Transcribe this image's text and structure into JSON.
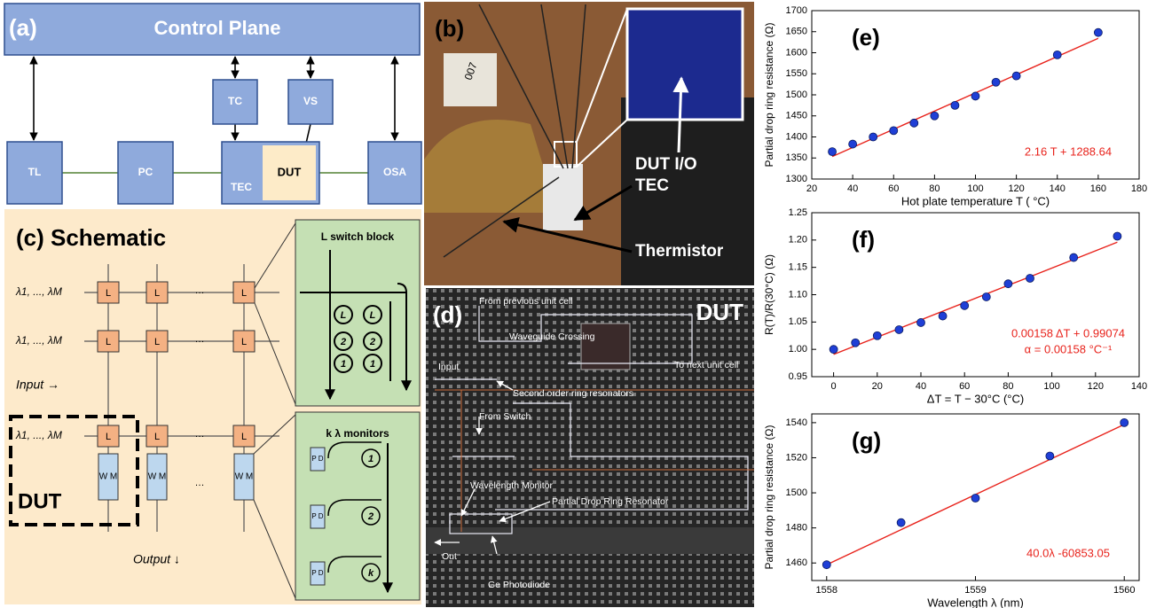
{
  "panels": {
    "a": {
      "label": "(a)",
      "control": "Control Plane",
      "tc": "TC",
      "vs": "VS",
      "tl": "TL",
      "pc": "PC",
      "tec": "TEC",
      "dut": "DUT",
      "osa": "OSA"
    },
    "b": {
      "label": "(b)",
      "chip": "007",
      "dut_io": "DUT I/O",
      "tec": "TEC",
      "thermistor": "Thermistor"
    },
    "c": {
      "label": "(c) Schematic",
      "switch_block": "L  switch block",
      "wavelengths": "λ1, ..., λM",
      "input": "Input →",
      "output": "Output ↓",
      "dut": "DUT",
      "switch": "L",
      "monitor": "W M",
      "dots": "…",
      "monitors_title": "k λ monitors",
      "pd": "P D",
      "rings": [
        "1",
        "2",
        "k"
      ],
      "ring_pairs": [
        "L",
        "2",
        "1"
      ]
    },
    "d": {
      "label": "(d)",
      "dut": "DUT",
      "from_prev": "From previous unit cell",
      "crossing": "Waveguide Crossing",
      "input": "Input",
      "to_next": "To next unit cell",
      "second_order": "Second order ring resonators",
      "from_switch": "From Switch",
      "wavelength_monitor": "Wavelength Monitor",
      "partial_drop": "Partial Drop Ring Resonator",
      "out": "Out",
      "photodiode": "Ge Photodiode"
    }
  },
  "chart_data": [
    {
      "type": "scatter",
      "panel_label": "(e)",
      "xlabel": "Hot plate temperature T ( °C)",
      "ylabel": "Partial drop ring resistance (Ω)",
      "x": [
        30,
        40,
        50,
        60,
        70,
        80,
        90,
        100,
        110,
        120,
        140,
        160
      ],
      "values": [
        1365,
        1383,
        1400,
        1415,
        1433,
        1450,
        1475,
        1497,
        1530,
        1545,
        1595,
        1648
      ],
      "color": "#1f3fd6",
      "fit": {
        "x": [
          30,
          160
        ],
        "values": [
          1353.44,
          1634.24
        ],
        "color": "#e8231c"
      },
      "annotations": [
        "2.16 T + 1288.64"
      ],
      "xlim": [
        20,
        180
      ],
      "xticks": [
        20,
        40,
        60,
        80,
        100,
        120,
        140,
        160,
        180
      ],
      "ylim": [
        1300,
        1700
      ],
      "yticks": [
        1300,
        1350,
        1400,
        1450,
        1500,
        1550,
        1600,
        1650,
        1700
      ]
    },
    {
      "type": "scatter",
      "panel_label": "(f)",
      "xlabel": "ΔT = T − 30°C (°C)",
      "ylabel": "R(T)/R(30°C) (Ω)",
      "x": [
        0,
        10,
        20,
        30,
        40,
        50,
        60,
        70,
        80,
        90,
        110,
        130
      ],
      "values": [
        1.0,
        1.012,
        1.025,
        1.036,
        1.049,
        1.061,
        1.08,
        1.096,
        1.12,
        1.13,
        1.168,
        1.207
      ],
      "color": "#1f3fd6",
      "fit": {
        "x": [
          0,
          130
        ],
        "values": [
          0.99074,
          1.19614
        ],
        "color": "#e8231c"
      },
      "annotations": [
        "0.00158 ΔT + 0.99074",
        "α = 0.00158 °C⁻¹"
      ],
      "xlim": [
        -10,
        140
      ],
      "xticks": [
        0,
        20,
        40,
        60,
        80,
        100,
        120,
        140
      ],
      "ylim": [
        0.95,
        1.25
      ],
      "yticks": [
        0.95,
        {
          "value": 1.0,
          "label": "1.00"
        },
        1.05,
        {
          "value": 1.1,
          "label": "1.10"
        },
        1.15,
        {
          "value": 1.2,
          "label": "1.20"
        },
        1.25
      ]
    },
    {
      "type": "scatter",
      "panel_label": "(g)",
      "xlabel": "Wavelength λ (nm)",
      "ylabel": "Partial drop ring resistance (Ω)",
      "x": [
        1558,
        1558.5,
        1559,
        1559.5,
        1560
      ],
      "values": [
        1459,
        1483,
        1497,
        1521,
        1540
      ],
      "color": "#1f3fd6",
      "fit": {
        "x": [
          1558,
          1560
        ],
        "values": [
          1459,
          1539
        ],
        "color": "#e8231c"
      },
      "annotations": [
        "40.0λ -60853.05"
      ],
      "xlim": [
        1557.9,
        1560.1
      ],
      "xticks": [
        1558,
        1559,
        1560
      ],
      "ylim": [
        1450,
        1545
      ],
      "yticks": [
        1460,
        1480,
        1500,
        1520,
        1540
      ]
    }
  ]
}
